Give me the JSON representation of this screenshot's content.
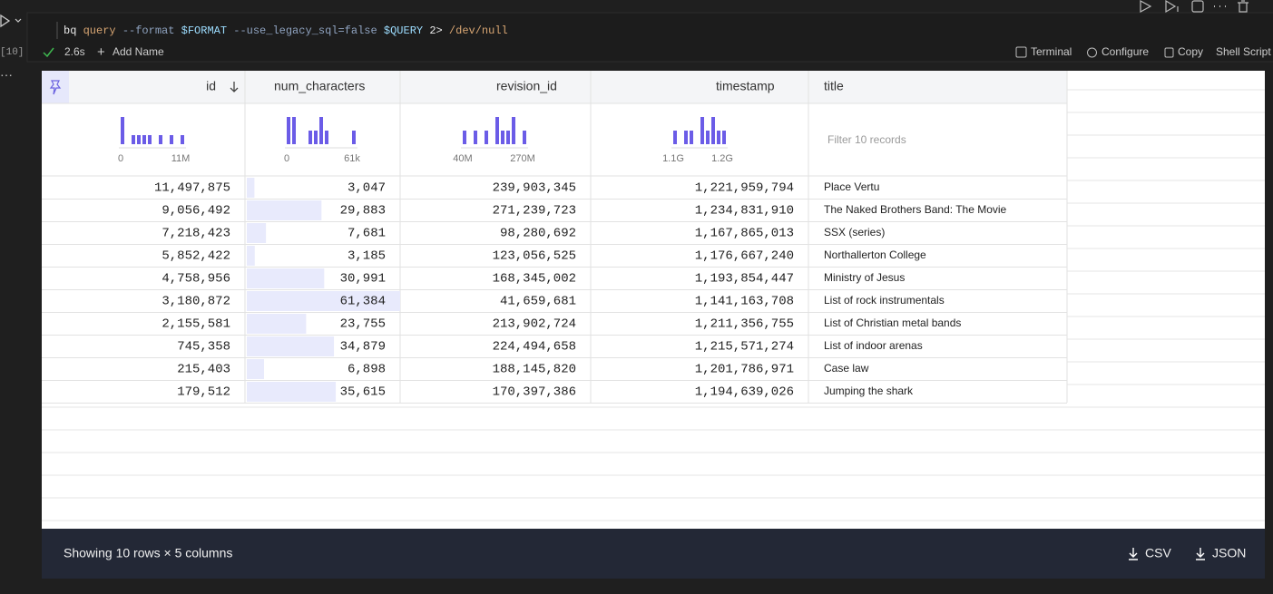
{
  "toolbar": {
    "run_count": "[10]",
    "code": [
      {
        "text": "bq ",
        "color": "#e8e8e8"
      },
      {
        "text": "query ",
        "color": "#d7a572"
      },
      {
        "text": "--format ",
        "color": "#8fa3c0"
      },
      {
        "text": "$FORMAT ",
        "color": "#9cdcfe"
      },
      {
        "text": "--use_legacy_sql=false ",
        "color": "#8fa3c0"
      },
      {
        "text": "$QUERY ",
        "color": "#9cdcfe"
      },
      {
        "text": "2> ",
        "color": "#e8e8e8"
      },
      {
        "text": "/dev/null",
        "color": "#d7a572"
      }
    ],
    "duration": "2.6s",
    "add_name": "Add Name",
    "actions": [
      "Terminal",
      "Configure",
      "Copy",
      "Shell Script"
    ]
  },
  "table": {
    "columns": [
      "id",
      "num_characters",
      "revision_id",
      "timestamp",
      "title"
    ],
    "histograms": [
      {
        "counts": [
          3,
          0,
          1,
          1,
          1,
          1,
          0,
          1,
          0,
          1,
          0,
          1
        ],
        "min_label": "0",
        "max_label": "11M"
      },
      {
        "counts": [
          2,
          2,
          0,
          0,
          1,
          1,
          2,
          1,
          0,
          0,
          0,
          0,
          1
        ],
        "min_label": "0",
        "max_label": "61k"
      },
      {
        "counts": [
          1,
          0,
          1,
          0,
          1,
          0,
          2,
          1,
          1,
          2,
          0,
          1
        ],
        "min_label": "40M",
        "max_label": "270M"
      },
      {
        "counts": [
          1,
          0,
          1,
          1,
          0,
          2,
          1,
          2,
          1,
          1
        ],
        "min_label": "1.1G",
        "max_label": "1.2G"
      }
    ],
    "filter_placeholder": "Filter 10 records",
    "rows": [
      [
        "11,497,875",
        "3,047",
        "239,903,345",
        "1,221,959,794",
        "Place Vertu"
      ],
      [
        "9,056,492",
        "29,883",
        "271,239,723",
        "1,234,831,910",
        "The Naked Brothers Band: The Movie"
      ],
      [
        "7,218,423",
        "7,681",
        "98,280,692",
        "1,167,865,013",
        "SSX (series)"
      ],
      [
        "5,852,422",
        "3,185",
        "123,056,525",
        "1,176,667,240",
        "Northallerton College"
      ],
      [
        "4,758,956",
        "30,991",
        "168,345,002",
        "1,193,854,447",
        "Ministry of Jesus"
      ],
      [
        "3,180,872",
        "61,384",
        "41,659,681",
        "1,141,163,708",
        "List of rock instrumentals"
      ],
      [
        "2,155,581",
        "23,755",
        "213,902,724",
        "1,211,356,755",
        "List of Christian metal bands"
      ],
      [
        "745,358",
        "34,879",
        "224,494,658",
        "1,215,571,274",
        "List of indoor arenas"
      ],
      [
        "215,403",
        "6,898",
        "188,145,820",
        "1,201,786,971",
        "Case law"
      ],
      [
        "179,512",
        "35,615",
        "170,397,386",
        "1,194,639,026",
        "Jumping the shark"
      ]
    ]
  },
  "footer": {
    "summary": "Showing 10 rows × 5 columns",
    "downloads": [
      "CSV",
      "JSON"
    ]
  }
}
